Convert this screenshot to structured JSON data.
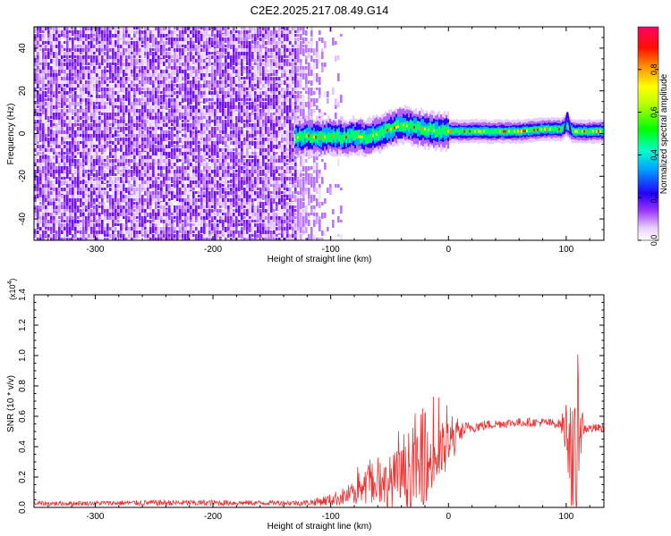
{
  "figure_title": "C2E2.2025.217.08.49.G14",
  "chart_data": [
    {
      "type": "heatmap",
      "title": "C2E2.2025.217.08.49.G14",
      "xlabel": "Height of straight line (km)",
      "ylabel": "Frequency (Hz)",
      "xlim": [
        -352,
        132
      ],
      "ylim": [
        -50,
        50
      ],
      "xticks": [
        -300,
        -200,
        -100,
        0,
        100
      ],
      "xtick_labels": [
        "-300",
        "-200",
        "-100",
        "0",
        "100"
      ],
      "yticks": [
        -40,
        -20,
        0,
        20,
        40
      ],
      "ytick_labels": [
        "-40",
        "-20",
        "0",
        "20",
        "40"
      ],
      "noise_region_x": [
        -352,
        -110
      ],
      "signal_start_x": -130,
      "signal_center_hz": [
        [
          -130,
          -2
        ],
        [
          -120,
          -1
        ],
        [
          -110,
          -2
        ],
        [
          -100,
          -1
        ],
        [
          -90,
          -2
        ],
        [
          -80,
          -1
        ],
        [
          -70,
          -2
        ],
        [
          -60,
          0
        ],
        [
          -50,
          2
        ],
        [
          -40,
          4
        ],
        [
          -30,
          3
        ],
        [
          -20,
          2
        ],
        [
          -10,
          1
        ],
        [
          0,
          1
        ],
        [
          10,
          1
        ],
        [
          20,
          1
        ],
        [
          40,
          1
        ],
        [
          60,
          1
        ],
        [
          80,
          2
        ],
        [
          95,
          2
        ],
        [
          100,
          4
        ],
        [
          105,
          1
        ],
        [
          120,
          1
        ],
        [
          132,
          1
        ]
      ],
      "colorbar": {
        "label": "Normalized spectral amplitude",
        "range": [
          0.0,
          1.0
        ],
        "ticks": [
          0.0,
          0.2,
          0.4,
          0.6,
          0.8
        ],
        "tick_labels": [
          "0.0",
          "0.2",
          "0.4",
          "0.6",
          "0.8"
        ],
        "colormap": [
          "#ffffff",
          "#cc66ff",
          "#6600ff",
          "#0000ff",
          "#00ffff",
          "#00ff00",
          "#ffff00",
          "#ff8800",
          "#ff0000",
          "#ff0066"
        ]
      }
    },
    {
      "type": "line",
      "xlabel": "Height of straight line (km)",
      "ylabel": "SNR (10 * v/v)",
      "yscale_label": "(x10",
      "yscale_exp": "4",
      "yscale_close": ")",
      "xlim": [
        -352,
        132
      ],
      "ylim": [
        0,
        1.4
      ],
      "xticks": [
        -300,
        -200,
        -100,
        0,
        100
      ],
      "xtick_labels": [
        "-300",
        "-200",
        "-100",
        "0",
        "100"
      ],
      "yticks": [
        0.0,
        0.2,
        0.4,
        0.6,
        0.8,
        1.0,
        1.2,
        1.4
      ],
      "ytick_labels": [
        "0.0",
        "0.2",
        "0.4",
        "0.6",
        "0.8",
        "1.0",
        "1.2",
        "1.4"
      ],
      "series": [
        {
          "color": "#ee3333",
          "envelope_x": [
            -352,
            -300,
            -250,
            -200,
            -150,
            -120,
            -100,
            -80,
            -60,
            -45,
            -30,
            -20,
            -10,
            0,
            10,
            20,
            40,
            60,
            80,
            95,
            100,
            104,
            106,
            108,
            110,
            115,
            120,
            132
          ],
          "baseline_y": [
            0.025,
            0.028,
            0.03,
            0.03,
            0.03,
            0.03,
            0.05,
            0.09,
            0.14,
            0.18,
            0.22,
            0.27,
            0.33,
            0.4,
            0.5,
            0.53,
            0.55,
            0.56,
            0.56,
            0.55,
            0.52,
            0.48,
            0.05,
            0.3,
            0.6,
            0.52,
            0.52,
            0.52
          ],
          "noise_amp": [
            0.015,
            0.015,
            0.02,
            0.02,
            0.015,
            0.02,
            0.04,
            0.08,
            0.12,
            0.2,
            0.22,
            0.25,
            0.22,
            0.18,
            0.06,
            0.04,
            0.03,
            0.03,
            0.03,
            0.03,
            0.2,
            0.4,
            0.5,
            0.8,
            0.4,
            0.04,
            0.03,
            0.03
          ]
        }
      ]
    }
  ]
}
